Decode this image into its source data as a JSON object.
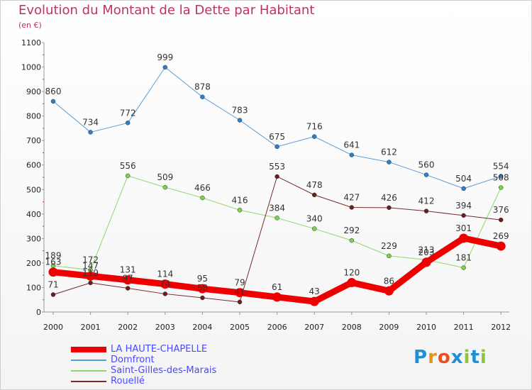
{
  "chart_data": {
    "type": "line",
    "title": "Evolution du Montant de la Dette par Habitant",
    "subtitle": "(en €)",
    "xlabel": "",
    "ylabel": "",
    "ylim": [
      0,
      1100
    ],
    "yticks": [
      0,
      100,
      200,
      300,
      400,
      500,
      600,
      700,
      800,
      900,
      1000,
      1100
    ],
    "categories": [
      "2000",
      "2001",
      "2002",
      "2003",
      "2004",
      "2005",
      "2006",
      "2007",
      "2008",
      "2009",
      "2010",
      "2011",
      "2012"
    ],
    "legend_position": "bottom-left",
    "series": [
      {
        "name": "Domfront",
        "color": "#5b9bd5",
        "point_color": "#2f7ec8",
        "width": 1,
        "labels": true,
        "values": [
          860,
          734,
          772,
          999,
          878,
          783,
          675,
          716,
          641,
          612,
          560,
          504,
          554
        ]
      },
      {
        "name": "Saint-Gilles-des-Marais",
        "color": "#8fd86a",
        "point_color": "#7cd14e",
        "width": 1,
        "labels": true,
        "values": [
          189,
          172,
          556,
          509,
          466,
          416,
          384,
          340,
          292,
          229,
          213,
          181,
          508
        ]
      },
      {
        "name": "Rouellé",
        "color": "#7a2a2a",
        "point_color": "#6b1e1e",
        "width": 1,
        "labels": true,
        "values": [
          71,
          119,
          97,
          74,
          58,
          41,
          553,
          478,
          427,
          426,
          412,
          394,
          376
        ]
      },
      {
        "name": "LA HAUTE-CHAPELLE",
        "color": "#ee0000",
        "point_color": "#ee0000",
        "width": 9,
        "labels": true,
        "values": [
          163,
          147,
          131,
          114,
          95,
          79,
          61,
          43,
          120,
          86,
          203,
          301,
          269
        ]
      }
    ]
  },
  "legend": {
    "items": [
      {
        "label": "LA HAUTE-CHAPELLE",
        "color": "#ee0000"
      },
      {
        "label": "Domfront",
        "color": "#5b9bd5"
      },
      {
        "label": "Saint-Gilles-des-Marais",
        "color": "#8fd86a"
      },
      {
        "label": "Rouellé",
        "color": "#7a2a2a"
      }
    ]
  },
  "logo": {
    "text": "Proxiti",
    "letters": [
      "P",
      "r",
      "o",
      "x",
      "i",
      "t",
      "i"
    ],
    "colors": [
      "#1f8fd6",
      "#e89320",
      "#e8501e",
      "#1f8fd6",
      "#8cc63f",
      "#1f8fd6",
      "#8cc63f"
    ]
  }
}
